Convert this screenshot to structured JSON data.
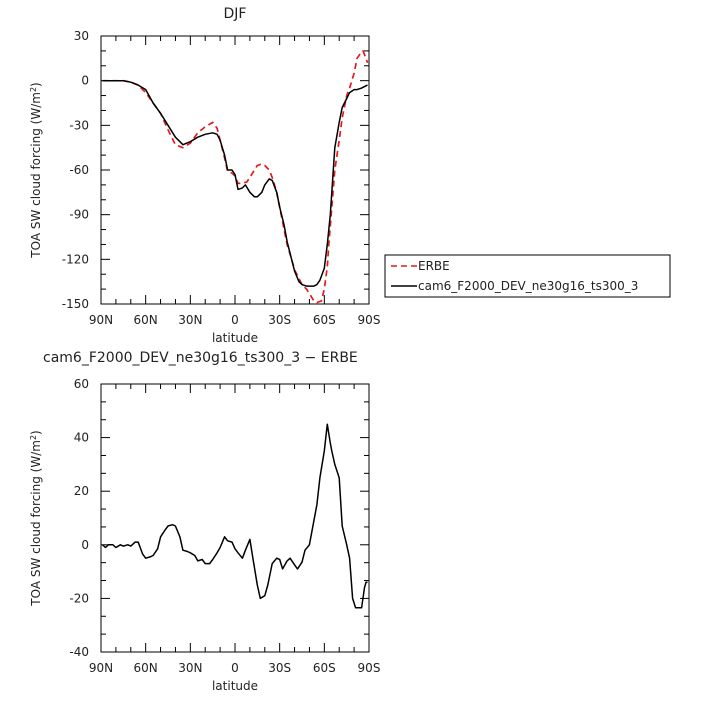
{
  "chart_data": [
    {
      "type": "line",
      "title": "DJF",
      "xlabel": "latitude",
      "ylabel": "TOA SW cloud forcing (W/m²)",
      "xlim": [
        90,
        -90
      ],
      "ylim": [
        -150,
        30
      ],
      "x_ticks": [
        90,
        60,
        30,
        0,
        -30,
        -60,
        -90
      ],
      "x_tick_labels": [
        "90N",
        "60N",
        "30N",
        "0",
        "30S",
        "60S",
        "90S"
      ],
      "y_ticks": [
        30,
        0,
        -30,
        -60,
        -90,
        -120,
        -150
      ],
      "y_tick_labels": [
        "30",
        "0",
        "-30",
        "-60",
        "-90",
        "-120",
        "-150"
      ],
      "legend_position": "outside-right",
      "series": [
        {
          "name": "ERBE",
          "color": "#e41a1c",
          "dash": "dashed",
          "x": [
            89,
            85,
            80,
            75,
            70,
            65,
            60,
            55,
            50,
            45,
            40,
            35,
            30,
            25,
            20,
            15,
            12,
            10,
            7,
            5,
            2,
            0,
            -2,
            -5,
            -8,
            -10,
            -13,
            -15,
            -18,
            -20,
            -23,
            -25,
            -28,
            -30,
            -33,
            -35,
            -38,
            -40,
            -43,
            -45,
            -48,
            -50,
            -53,
            -55,
            -58,
            -60,
            -62,
            -63,
            -65,
            -67,
            -70,
            -72,
            -75,
            -77,
            -80,
            -82,
            -84,
            -86,
            -88,
            -89
          ],
          "y": [
            0,
            0,
            0,
            0,
            -1,
            -3,
            -8,
            -15,
            -22,
            -33,
            -43,
            -45,
            -42,
            -35,
            -31,
            -28,
            -32,
            -40,
            -52,
            -61,
            -62,
            -64,
            -69,
            -69,
            -68,
            -65,
            -60,
            -57,
            -56,
            -57,
            -60,
            -65,
            -75,
            -85,
            -100,
            -110,
            -120,
            -127,
            -133,
            -137,
            -140,
            -143,
            -148,
            -149,
            -148,
            -140,
            -125,
            -110,
            -85,
            -60,
            -40,
            -25,
            -10,
            -5,
            5,
            15,
            18,
            20,
            15,
            12
          ]
        },
        {
          "name": "cam6_F2000_DEV_ne30g16_ts300_3",
          "color": "#000000",
          "dash": "solid",
          "x": [
            89,
            85,
            80,
            75,
            70,
            65,
            60,
            55,
            50,
            45,
            40,
            35,
            30,
            25,
            20,
            15,
            12,
            10,
            7,
            5,
            2,
            0,
            -2,
            -5,
            -7,
            -10,
            -13,
            -15,
            -18,
            -20,
            -23,
            -25,
            -28,
            -30,
            -33,
            -35,
            -38,
            -40,
            -43,
            -45,
            -48,
            -50,
            -53,
            -55,
            -57,
            -60,
            -62,
            -64,
            -65,
            -67,
            -70,
            -72,
            -75,
            -77,
            -80,
            -82,
            -85,
            -87,
            -89
          ],
          "y": [
            0,
            0,
            0,
            0,
            -1,
            -3,
            -6,
            -15,
            -22,
            -30,
            -38,
            -43,
            -41,
            -38,
            -36,
            -35,
            -36,
            -40,
            -50,
            -60,
            -60,
            -63,
            -73,
            -72,
            -70,
            -75,
            -78,
            -78,
            -75,
            -70,
            -66,
            -67,
            -75,
            -85,
            -97,
            -108,
            -120,
            -128,
            -135,
            -137,
            -138,
            -138,
            -138,
            -137,
            -134,
            -126,
            -110,
            -90,
            -75,
            -45,
            -28,
            -18,
            -12,
            -8,
            -6,
            -6,
            -5,
            -4,
            -3
          ]
        }
      ]
    },
    {
      "type": "line",
      "title": "cam6_F2000_DEV_ne30g16_ts300_3 − ERBE",
      "xlabel": "latitude",
      "ylabel": "TOA SW cloud forcing (W/m²)",
      "xlim": [
        90,
        -90
      ],
      "ylim": [
        -40,
        60
      ],
      "x_ticks": [
        90,
        60,
        30,
        0,
        -30,
        -60,
        -90
      ],
      "x_tick_labels": [
        "90N",
        "60N",
        "30N",
        "0",
        "30S",
        "60S",
        "90S"
      ],
      "y_ticks": [
        60,
        40,
        20,
        0,
        -20,
        -40
      ],
      "y_tick_labels": [
        "60",
        "40",
        "20",
        "0",
        "-20",
        "-40"
      ],
      "series": [
        {
          "color": "#000000",
          "dash": "solid",
          "x": [
            89,
            87,
            85,
            82,
            80,
            77,
            75,
            72,
            70,
            67,
            65,
            62,
            60,
            57,
            55,
            52,
            50,
            47,
            45,
            42,
            40,
            37,
            35,
            32,
            30,
            27,
            25,
            22,
            20,
            17,
            15,
            12,
            10,
            7,
            5,
            2,
            0,
            -2,
            -5,
            -7,
            -10,
            -12,
            -15,
            -17,
            -20,
            -22,
            -25,
            -28,
            -30,
            -32,
            -35,
            -37,
            -40,
            -42,
            -45,
            -47,
            -50,
            -52,
            -55,
            -57,
            -60,
            -62,
            -64,
            -65,
            -67,
            -70,
            -72,
            -75,
            -77,
            -79,
            -81,
            -83,
            -85,
            -87,
            -88,
            -89
          ],
          "y": [
            0,
            -1,
            0,
            0,
            -1,
            0,
            -0.5,
            0,
            -0.5,
            1,
            1,
            -3.5,
            -5,
            -4.5,
            -4,
            -1.5,
            3,
            5.5,
            7,
            7.5,
            7,
            3,
            -2,
            -2.5,
            -3,
            -4,
            -6,
            -5.5,
            -7,
            -7,
            -5.5,
            -3,
            -1,
            3,
            1.5,
            1,
            -1.5,
            -3,
            -5,
            -2,
            2,
            -5,
            -15,
            -20,
            -19,
            -15,
            -7,
            -5,
            -5.5,
            -9,
            -6,
            -5,
            -7.5,
            -9,
            -6.5,
            -2,
            0,
            6,
            15,
            25,
            35,
            45,
            38,
            35,
            30,
            25,
            7,
            0,
            -5,
            -20,
            -23.5,
            -23.5,
            -23.5,
            -16,
            -14,
            -14
          ]
        }
      ]
    }
  ]
}
